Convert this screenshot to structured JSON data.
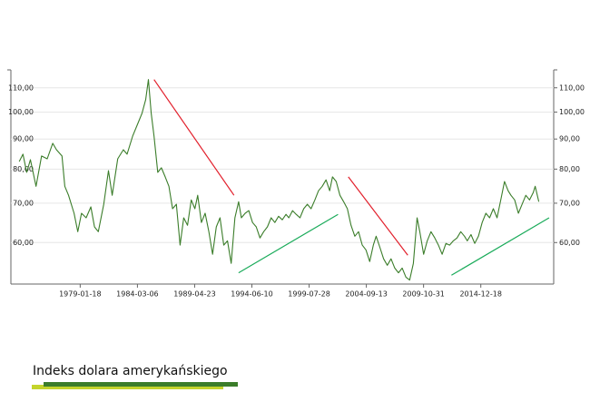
{
  "chart_data": {
    "type": "line",
    "title": "Indeks dolara amerykańskiego",
    "log_y": true,
    "grid": true,
    "x": [
      "1973-08-01",
      "1973-12-01",
      "1974-04-01",
      "1974-08-01",
      "1975-02-01",
      "1975-08-01",
      "1976-02-01",
      "1976-08-01",
      "1976-12-01",
      "1977-06-01",
      "1977-09-01",
      "1978-01-01",
      "1978-07-01",
      "1978-11-01",
      "1979-03-01",
      "1979-08-01",
      "1980-01-01",
      "1980-05-01",
      "1980-09-01",
      "1981-03-01",
      "1981-08-01",
      "1981-12-01",
      "1982-06-01",
      "1982-12-01",
      "1983-04-01",
      "1983-10-01",
      "1984-04-01",
      "1984-08-01",
      "1984-12-01",
      "1985-03-01",
      "1985-06-01",
      "1985-09-01",
      "1986-01-01",
      "1986-05-01",
      "1986-09-01",
      "1987-01-01",
      "1987-05-01",
      "1987-09-01",
      "1988-01-01",
      "1988-05-01",
      "1988-09-01",
      "1989-01-01",
      "1989-05-01",
      "1989-08-01",
      "1989-12-01",
      "1990-04-01",
      "1990-08-01",
      "1990-12-01",
      "1991-04-01",
      "1991-08-01",
      "1991-12-01",
      "1992-04-01",
      "1992-08-01",
      "1992-12-01",
      "1993-04-01",
      "1993-07-01",
      "1993-11-01",
      "1994-03-01",
      "1994-07-01",
      "1994-11-01",
      "1995-03-01",
      "1995-07-01",
      "1995-11-01",
      "1996-03-01",
      "1996-07-01",
      "1996-11-01",
      "1997-03-01",
      "1997-07-01",
      "1997-10-01",
      "1998-02-01",
      "1998-06-01",
      "1998-10-01",
      "1999-02-01",
      "1999-06-01",
      "1999-10-01",
      "2000-02-01",
      "2000-06-01",
      "2000-10-01",
      "2001-02-01",
      "2001-06-01",
      "2001-09-01",
      "2002-01-01",
      "2002-05-01",
      "2002-09-01",
      "2003-01-01",
      "2003-05-01",
      "2003-09-01",
      "2004-01-01",
      "2004-05-01",
      "2004-09-01",
      "2005-01-01",
      "2005-05-01",
      "2005-08-01",
      "2005-12-01",
      "2006-04-01",
      "2006-08-01",
      "2006-12-01",
      "2007-04-01",
      "2007-08-01",
      "2007-12-01",
      "2008-04-01",
      "2008-08-01",
      "2008-12-01",
      "2009-04-01",
      "2009-07-01",
      "2009-11-01",
      "2010-03-01",
      "2010-07-01",
      "2010-11-01",
      "2011-03-01",
      "2011-07-01",
      "2011-11-01",
      "2012-03-01",
      "2012-07-01",
      "2012-11-01",
      "2013-03-01",
      "2013-07-01",
      "2013-10-01",
      "2014-02-01",
      "2014-06-01",
      "2014-10-01",
      "2015-02-01",
      "2015-06-01",
      "2015-10-01",
      "2016-02-01",
      "2016-06-01",
      "2016-10-01",
      "2017-02-01",
      "2017-06-01",
      "2017-09-01",
      "2018-01-01",
      "2018-05-01",
      "2018-09-01",
      "2019-01-01",
      "2019-05-01",
      "2019-09-01",
      "2019-11-01",
      "2020-03-01"
    ],
    "series": [
      {
        "color": "#3b7d2a",
        "values": [
          82.4,
          84.8,
          79,
          83,
          74.8,
          84.2,
          83.3,
          88.5,
          86.3,
          84.2,
          74.8,
          72.2,
          67.3,
          62.6,
          67.3,
          66.1,
          69,
          63.8,
          62.6,
          69.7,
          79.5,
          72.2,
          83.3,
          86.3,
          84.8,
          91,
          96,
          99.5,
          105,
          113.6,
          99.5,
          91,
          79,
          80.4,
          77.6,
          74.8,
          68.5,
          69.7,
          59.4,
          66.1,
          64.2,
          70.9,
          68.5,
          72.2,
          64.9,
          67.3,
          62.6,
          57.3,
          63.8,
          66.1,
          59.4,
          60.4,
          55.3,
          66.1,
          70.4,
          66.1,
          67.3,
          68,
          64.9,
          63.8,
          61.1,
          62.6,
          63.8,
          66.1,
          64.9,
          66.5,
          65.6,
          67,
          66.1,
          68,
          67,
          66.1,
          68.5,
          69.7,
          68.5,
          70.9,
          73.5,
          74.8,
          76.7,
          73.5,
          77.6,
          76.2,
          72.2,
          70.4,
          68.5,
          64.2,
          61.5,
          62.6,
          59.4,
          58.3,
          55.7,
          59.4,
          61.5,
          58.9,
          56.3,
          54.9,
          56.3,
          54.3,
          53.3,
          54.3,
          52.4,
          51.8,
          55.3,
          66.1,
          62.6,
          57.3,
          60.4,
          62.6,
          61.1,
          59.4,
          57.3,
          59.8,
          59.4,
          60.4,
          61.1,
          62.6,
          61.5,
          60.4,
          61.9,
          59.8,
          61.5,
          64.9,
          67.3,
          66.1,
          68.5,
          66.1,
          70.9,
          76.2,
          73.5,
          72.2,
          70.9,
          67.3,
          69.7,
          72.2,
          70.9,
          73,
          74.8,
          70.4
        ]
      }
    ],
    "trend_lines": [
      {
        "color": "#e2202c",
        "x": [
          "1985-09-01",
          "1992-11-01"
        ],
        "y": [
          113.6,
          72.2
        ]
      },
      {
        "color": "#1aab5a",
        "x": [
          "1993-04-01",
          "2002-03-01"
        ],
        "y": [
          53.3,
          67
        ]
      },
      {
        "color": "#e2202c",
        "x": [
          "2003-02-01",
          "2008-06-01"
        ],
        "y": [
          77.6,
          57.1
        ]
      },
      {
        "color": "#1aab5a",
        "x": [
          "2012-05-01",
          "2021-02-01"
        ],
        "y": [
          52.8,
          66.1
        ]
      }
    ],
    "xlim": [
      "1972-11-01",
      "2021-07-01"
    ],
    "xticks": [
      "1979-01-18",
      "1984-03-06",
      "1989-04-23",
      "1994-06-10",
      "1999-07-28",
      "2004-09-13",
      "2009-10-31",
      "2014-12-18"
    ],
    "ylim": [
      51,
      118
    ],
    "yticks": [
      {
        "value": 60,
        "label": "60,00"
      },
      {
        "value": 70,
        "label": "70,00"
      },
      {
        "value": 80,
        "label": "80,00"
      },
      {
        "value": 90,
        "label": "90,00"
      },
      {
        "value": 100,
        "label": "100,00"
      },
      {
        "value": 110,
        "label": "110,00"
      }
    ],
    "y2lim": [
      51,
      118
    ],
    "y2ticks": [
      {
        "value": 60,
        "label": "60,00"
      },
      {
        "value": 70,
        "label": "70,00"
      },
      {
        "value": 80,
        "label": "80,00"
      },
      {
        "value": 90,
        "label": "90,00"
      },
      {
        "value": 100,
        "label": "100,00"
      },
      {
        "value": 110,
        "label": "110,00"
      }
    ]
  }
}
